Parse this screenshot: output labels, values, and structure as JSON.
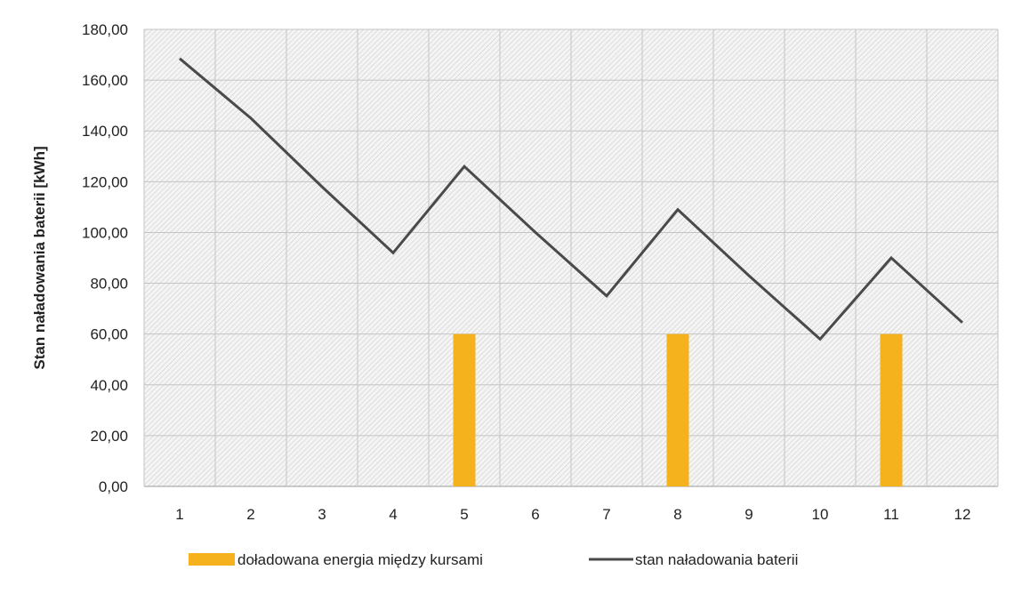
{
  "chart_data": {
    "type": "bar+line",
    "title": "",
    "xlabel": "",
    "ylabel": "Stan naładowania baterii [kWh]",
    "categories": [
      "1",
      "2",
      "3",
      "4",
      "5",
      "6",
      "7",
      "8",
      "9",
      "10",
      "11",
      "12"
    ],
    "ylim": [
      0,
      180
    ],
    "yticks": [
      "0,00",
      "20,00",
      "40,00",
      "60,00",
      "80,00",
      "100,00",
      "120,00",
      "140,00",
      "160,00",
      "180,00"
    ],
    "grid": true,
    "legend_position": "bottom",
    "series": [
      {
        "name": "doładowana energia między kursami",
        "type": "bar",
        "color": "#f5b21c",
        "values": [
          null,
          null,
          null,
          null,
          60,
          null,
          null,
          60,
          null,
          null,
          60,
          null
        ]
      },
      {
        "name": "stan naładowania baterii",
        "type": "line",
        "color": "#4a4a4a",
        "values": [
          168.5,
          145,
          118,
          92,
          126,
          100,
          75,
          109,
          83,
          58,
          90,
          64.5
        ]
      }
    ]
  }
}
